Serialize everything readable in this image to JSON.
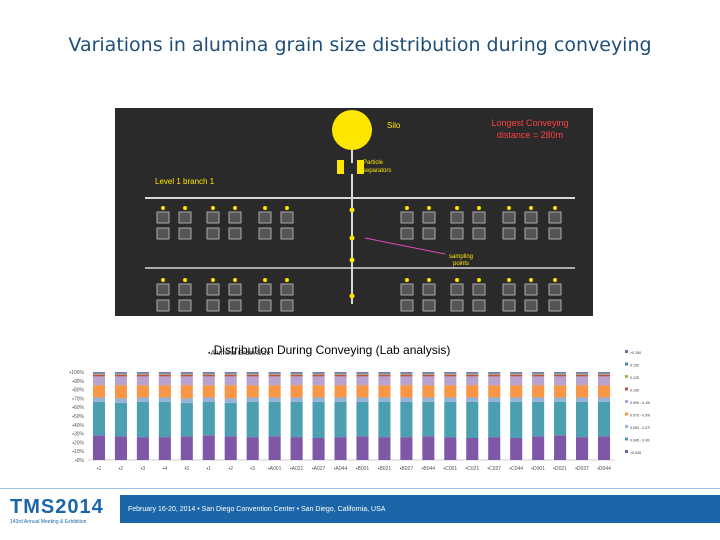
{
  "slide": {
    "title": "Variations in alumina grain size distribution during conveying"
  },
  "diagram": {
    "silo_label": "Silo",
    "distance_label_line1": "Longest Conveying",
    "distance_label_line2": "distance = 280m",
    "separators_line1": "Particle",
    "separators_line2": "separators",
    "branch_label": "Level 1 branch 1",
    "sampling_line1": "sampling",
    "sampling_line2": "points",
    "colors": {
      "silo": "#ffe600",
      "label": "#ffe600",
      "distance": "#ff4040",
      "background": "#2a2a2a"
    }
  },
  "chart_data": {
    "type": "bar",
    "stacked": true,
    "title": "Distribution During Conveying (Lab analysis)",
    "series_label": "Alumina Grain Size",
    "yticks": [
      "0%",
      "10%",
      "20%",
      "30%",
      "40%",
      "50%",
      "60%",
      "70%",
      "80%",
      "90%",
      "100%"
    ],
    "ylim": [
      0,
      100
    ],
    "categories": [
      "1",
      "2",
      "3",
      "4",
      "5",
      "1",
      "2",
      "3",
      "A001",
      "A021",
      "A027",
      "A044",
      "B001",
      "B021",
      "B027",
      "B044",
      "C001",
      "C021",
      "C027",
      "C044",
      "D001",
      "D021",
      "D027",
      "D044"
    ],
    "series": [
      {
        "name": "<0.045",
        "color": "#7e57a6",
        "values": [
          28,
          27,
          26,
          26,
          27,
          28,
          27,
          26,
          27,
          26,
          25,
          26,
          27,
          26,
          26,
          27,
          26,
          25,
          26,
          25,
          27,
          28,
          26,
          27
        ]
      },
      {
        "name": "0.045 - 0.063",
        "color": "#4b9fb0",
        "values": [
          38,
          38,
          40,
          40,
          38,
          38,
          38,
          40,
          39,
          40,
          41,
          40,
          39,
          40,
          40,
          39,
          40,
          41,
          40,
          41,
          39,
          38,
          40,
          39
        ]
      },
      {
        "name": "0.063 - 0.075",
        "color": "#95b3d7",
        "values": [
          5,
          5,
          5,
          5,
          5,
          5,
          5,
          5,
          5,
          5,
          5,
          5,
          5,
          5,
          5,
          5,
          5,
          5,
          5,
          5,
          5,
          5,
          5,
          5
        ]
      },
      {
        "name": "0.075 - 0.090",
        "color": "#f79646",
        "values": [
          14,
          15,
          14,
          14,
          15,
          14,
          15,
          14,
          14,
          14,
          14,
          14,
          14,
          14,
          14,
          14,
          14,
          14,
          14,
          14,
          14,
          14,
          14,
          14
        ]
      },
      {
        "name": "0.090 - 0.106",
        "color": "#b7a2d0",
        "values": [
          10,
          10,
          10,
          10,
          10,
          10,
          10,
          10,
          10,
          10,
          10,
          10,
          10,
          10,
          10,
          10,
          10,
          10,
          10,
          10,
          10,
          10,
          10,
          10
        ]
      },
      {
        "name": "0.106",
        "color": "#c0504d",
        "values": [
          2,
          2,
          2,
          2,
          2,
          2,
          2,
          2,
          2,
          2,
          2,
          2,
          2,
          2,
          2,
          2,
          2,
          2,
          2,
          2,
          2,
          2,
          2,
          2
        ]
      },
      {
        "name": "0.125",
        "color": "#9bbb59",
        "values": [
          1,
          1,
          1,
          1,
          1,
          1,
          1,
          1,
          1,
          1,
          1,
          1,
          1,
          1,
          1,
          1,
          1,
          1,
          1,
          1,
          1,
          1,
          1,
          1
        ]
      },
      {
        "name": "0.150",
        "color": "#4f81bd",
        "values": [
          1,
          1,
          1,
          1,
          1,
          1,
          1,
          1,
          1,
          1,
          1,
          1,
          1,
          1,
          1,
          1,
          1,
          1,
          1,
          1,
          1,
          1,
          1,
          1
        ]
      },
      {
        "name": ">0.150",
        "color": "#8064a2",
        "values": [
          1,
          1,
          1,
          1,
          1,
          1,
          1,
          1,
          1,
          1,
          1,
          1,
          1,
          1,
          1,
          1,
          1,
          1,
          1,
          1,
          1,
          1,
          1,
          1
        ]
      }
    ]
  },
  "footer": {
    "logo": "TMS2014",
    "logo_sub": "143rd Annual Meeting & Exhibition",
    "text": "February 16-20, 2014 • San Diego Convention Center • San Diego, California, USA"
  }
}
